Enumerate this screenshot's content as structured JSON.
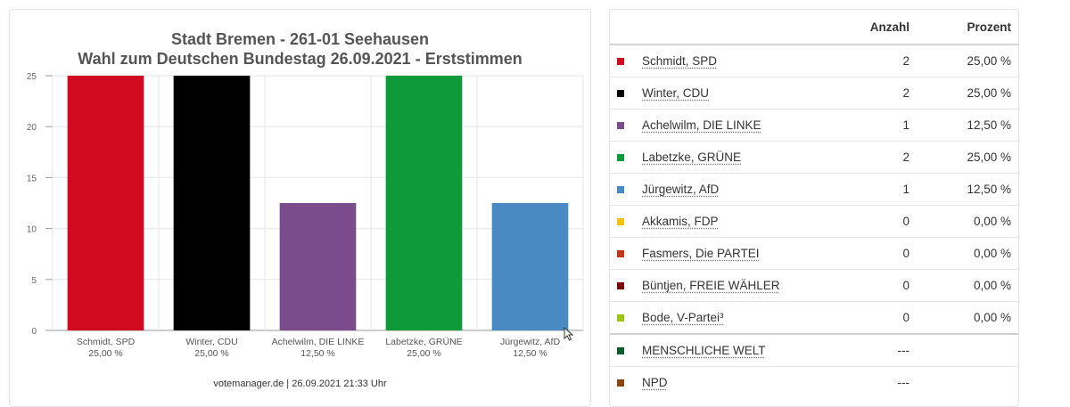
{
  "chart_data": {
    "type": "bar",
    "title": "Stadt Bremen - 261-01 Seehausen",
    "subtitle": "Wahl zum Deutschen Bundestag 26.09.2021  - Erststimmen",
    "categories": [
      "Schmidt, SPD",
      "Winter, CDU",
      "Achelwilm, DIE LINKE",
      "Labetzke, GRÜNE",
      "Jürgewitz, AfD"
    ],
    "category_labels": [
      "25,00 %",
      "25,00 %",
      "12,50 %",
      "25,00 %",
      "12,50 %"
    ],
    "values": [
      25,
      25,
      12.5,
      25,
      12.5
    ],
    "colors": [
      "#d10a1f",
      "#000000",
      "#7a4c8c",
      "#0f9a3a",
      "#4a8ac3"
    ],
    "ylim": [
      0,
      25
    ],
    "yticks": [
      0,
      5,
      10,
      15,
      20,
      25
    ],
    "grid": true,
    "xlabel": "",
    "ylabel": ""
  },
  "footer": "votemanager.de | 26.09.2021 21:33 Uhr",
  "table": {
    "headers": [
      "",
      "",
      "Anzahl",
      "Prozent"
    ],
    "rows": [
      {
        "name": "Schmidt, SPD",
        "color": "#d10a1f",
        "count": "2",
        "pct": "25,00 %"
      },
      {
        "name": "Winter, CDU",
        "color": "#000000",
        "count": "2",
        "pct": "25,00 %"
      },
      {
        "name": "Achelwilm, DIE LINKE",
        "color": "#7a4c8c",
        "count": "1",
        "pct": "12,50 %"
      },
      {
        "name": "Labetzke, GRÜNE",
        "color": "#0f9a3a",
        "count": "2",
        "pct": "25,00 %"
      },
      {
        "name": "Jürgewitz, AfD",
        "color": "#4a8ac3",
        "count": "1",
        "pct": "12,50 %"
      },
      {
        "name": "Akkamis, FDP",
        "color": "#f3c212",
        "count": "0",
        "pct": "0,00 %"
      },
      {
        "name": "Fasmers, Die PARTEI",
        "color": "#c0391b",
        "count": "0",
        "pct": "0,00 %"
      },
      {
        "name": "Büntjen, FREIE WÄHLER",
        "color": "#7a0a0a",
        "count": "0",
        "pct": "0,00 %"
      },
      {
        "name": "Bode, V-Partei³",
        "color": "#9bc313",
        "count": "0",
        "pct": "0,00 %"
      },
      {
        "name": "MENSCHLICHE WELT",
        "color": "#0c5a2a",
        "count": "---",
        "pct": ""
      },
      {
        "name": "NPD",
        "color": "#8b4513",
        "count": "---",
        "pct": ""
      }
    ]
  }
}
